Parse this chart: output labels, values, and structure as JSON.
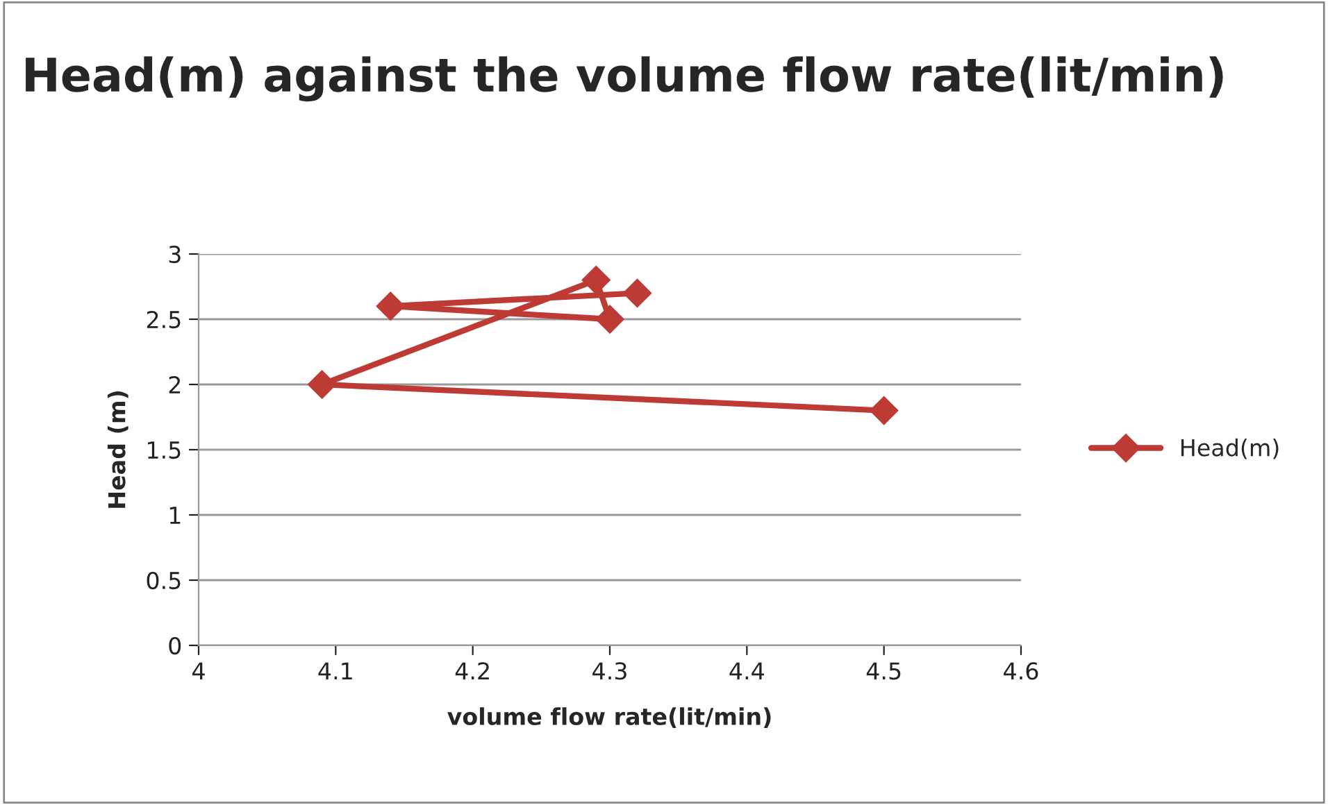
{
  "chart_data": {
    "type": "line",
    "title": "Head(m) against the volume flow rate(lit/min)",
    "xlabel": "volume flow rate(lit/min)",
    "ylabel": "Head (m)",
    "series": [
      {
        "name": "Head(m)",
        "color": "#be3a34",
        "x": [
          4.5,
          4.09,
          4.29,
          4.3,
          4.14,
          4.32
        ],
        "values": [
          1.8,
          2.0,
          2.8,
          2.5,
          2.6,
          2.7
        ]
      }
    ],
    "xlim": [
      4,
      4.6
    ],
    "xticks": [
      4,
      4.1,
      4.2,
      4.3,
      4.4,
      4.5,
      4.6
    ],
    "ylim": [
      0,
      3
    ],
    "yticks": [
      0,
      0.5,
      1,
      1.5,
      2,
      2.5,
      3
    ],
    "grid": "y",
    "legend": "right",
    "marker": "diamond",
    "line_style": "solid"
  }
}
